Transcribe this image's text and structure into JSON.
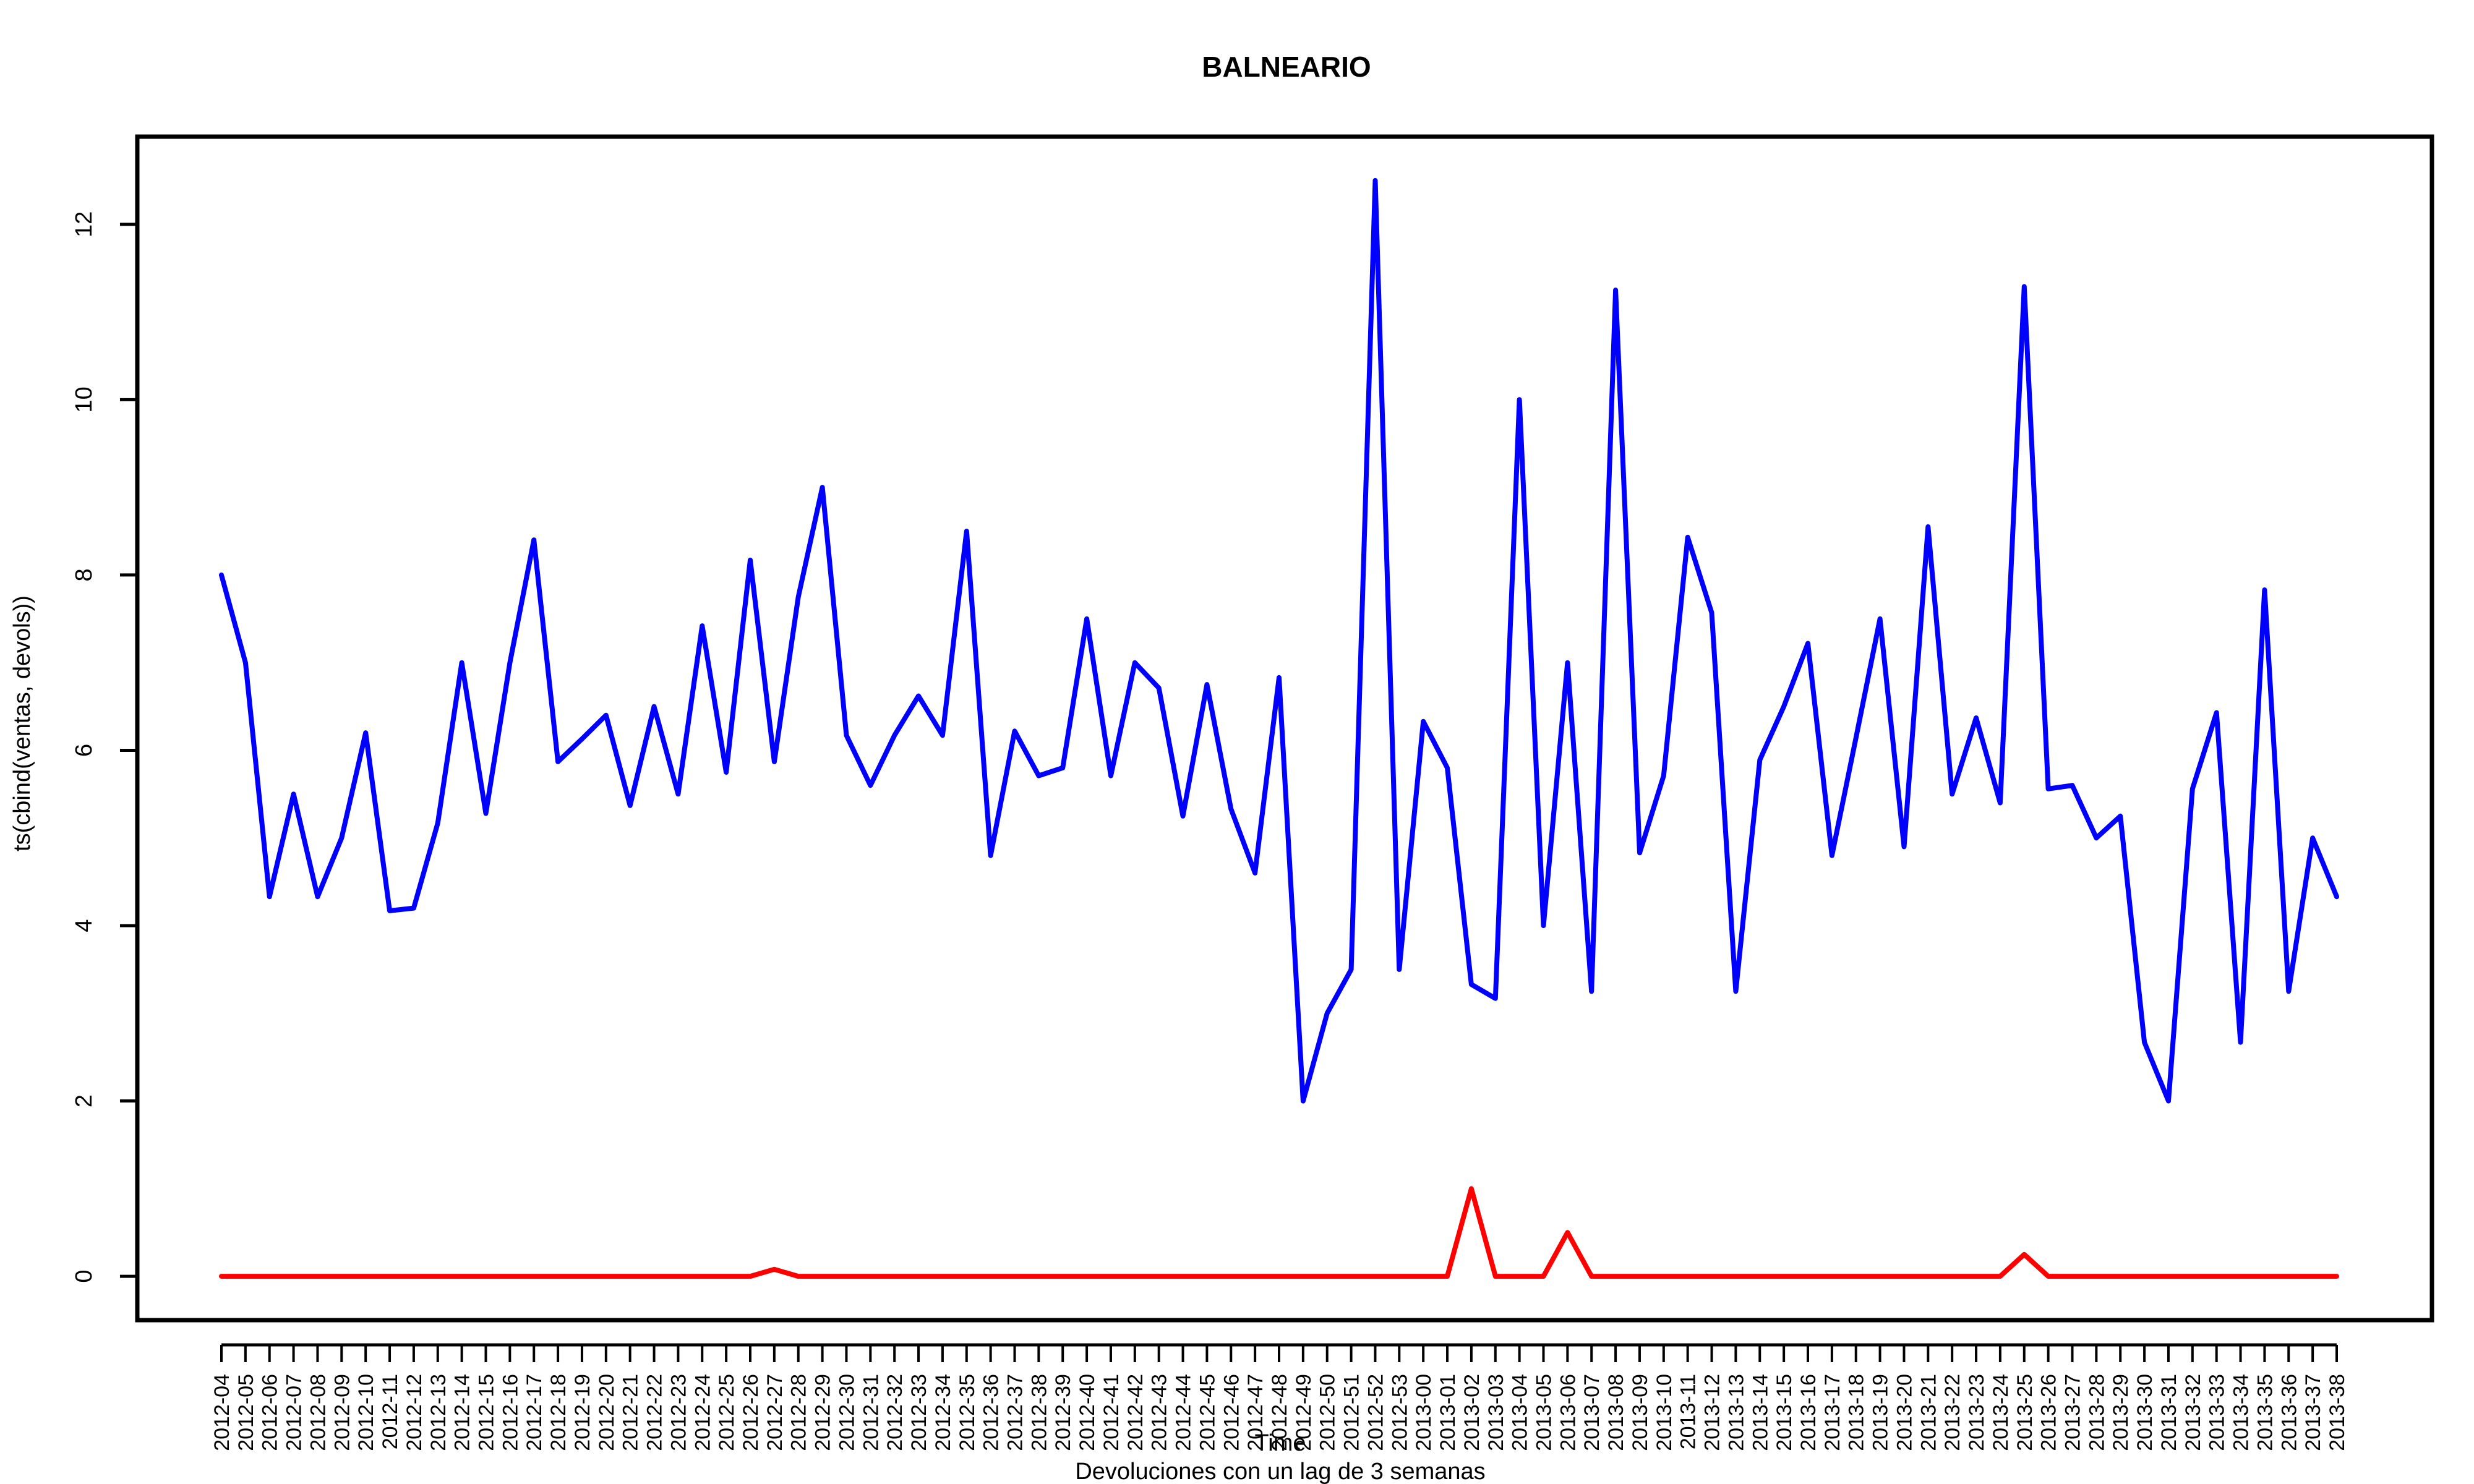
{
  "chart_data": {
    "type": "line",
    "title": "BALNEARIO",
    "xlabel": "Time",
    "subtitle": "Devoluciones con un lag de 3 semanas",
    "ylabel": "ts(cbind(ventas, devols))",
    "ylim": [
      -0.5,
      13
    ],
    "y_ticks": [
      0,
      2,
      4,
      6,
      8,
      10,
      12
    ],
    "grid": false,
    "categories": [
      "2012-04",
      "2012-05",
      "2012-06",
      "2012-07",
      "2012-08",
      "2012-09",
      "2012-10",
      "2012-11",
      "2012-12",
      "2012-13",
      "2012-14",
      "2012-15",
      "2012-16",
      "2012-17",
      "2012-18",
      "2012-19",
      "2012-20",
      "2012-21",
      "2012-22",
      "2012-23",
      "2012-24",
      "2012-25",
      "2012-26",
      "2012-27",
      "2012-28",
      "2012-29",
      "2012-30",
      "2012-31",
      "2012-32",
      "2012-33",
      "2012-34",
      "2012-35",
      "2012-36",
      "2012-37",
      "2012-38",
      "2012-39",
      "2012-40",
      "2012-41",
      "2012-42",
      "2012-43",
      "2012-44",
      "2012-45",
      "2012-46",
      "2012-47",
      "2012-48",
      "2012-49",
      "2012-50",
      "2012-51",
      "2012-52",
      "2012-53",
      "2013-00",
      "2013-01",
      "2013-02",
      "2013-03",
      "2013-04",
      "2013-05",
      "2013-06",
      "2013-07",
      "2013-08",
      "2013-09",
      "2013-10",
      "2013-11",
      "2013-12",
      "2013-13",
      "2013-14",
      "2013-15",
      "2013-16",
      "2013-17",
      "2013-18",
      "2013-19",
      "2013-20",
      "2013-21",
      "2013-22",
      "2013-23",
      "2013-24",
      "2013-25",
      "2013-26",
      "2013-27",
      "2013-28",
      "2013-29",
      "2013-30",
      "2013-31",
      "2013-32",
      "2013-33",
      "2013-34",
      "2013-35",
      "2013-36",
      "2013-37",
      "2013-38"
    ],
    "series": [
      {
        "color": "#0000ff",
        "values": [
          8,
          7,
          4.33,
          5.5,
          4.33,
          5,
          6.2,
          4.17,
          4.2,
          5.17,
          7,
          5.28,
          7,
          8.4,
          5.87,
          6.13,
          6.4,
          5.37,
          6.5,
          5.5,
          7.42,
          5.75,
          8.17,
          5.87,
          7.75,
          9,
          6.17,
          5.6,
          6.17,
          6.62,
          6.17,
          8.5,
          4.8,
          6.22,
          5.71,
          5.8,
          7.5,
          5.71,
          7,
          6.71,
          5.25,
          6.75,
          5.33,
          4.6,
          6.83,
          2,
          3,
          3.5,
          12.5,
          3.5,
          6.33,
          5.8,
          3.33,
          3.17,
          10,
          4,
          7,
          3.25,
          11.25,
          4.83,
          5.71,
          8.43,
          7.57,
          3.25,
          5.89,
          6.5,
          7.22,
          4.8,
          6.14,
          7.5,
          4.9,
          8.55,
          5.5,
          6.37,
          5.4,
          11.29,
          5.56,
          5.6,
          5,
          5.25,
          2.67,
          2,
          5.56,
          6.43,
          2.67,
          7.83,
          3.25,
          5,
          4.33
        ]
      },
      {
        "color": "#ff0000",
        "values": [
          0,
          0,
          0,
          0,
          0,
          0,
          0,
          0,
          0,
          0,
          0,
          0,
          0,
          0,
          0,
          0,
          0,
          0,
          0,
          0,
          0,
          0,
          0,
          0.08,
          0,
          0,
          0,
          0,
          0,
          0,
          0,
          0,
          0,
          0,
          0,
          0,
          0,
          0,
          0,
          0,
          0,
          0,
          0,
          0,
          0,
          0,
          0,
          0,
          0,
          0,
          0,
          0,
          1,
          0,
          0,
          0,
          0.5,
          0,
          0,
          0,
          0,
          0,
          0,
          0,
          0,
          0,
          0,
          0,
          0,
          0,
          0,
          0,
          0,
          0,
          0,
          0.25,
          0,
          0,
          0,
          0,
          0,
          0,
          0,
          0,
          0,
          0,
          0,
          0,
          0
        ]
      }
    ]
  }
}
